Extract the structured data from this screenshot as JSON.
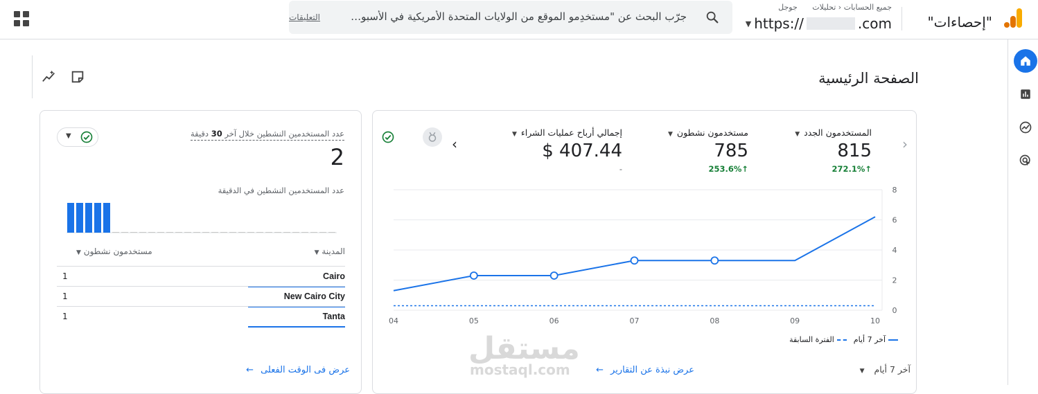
{
  "header": {
    "search_placeholder": "جرّب البحث عن \"مستخدِمو الموقع من الولايات المتحدة الأمريكية في الأسبوع الماضي\"",
    "feedback_link": "التعليقات",
    "brand_title": "\"إحصاءات\"",
    "breadcrumb_all_accounts": "جميع الحسابات",
    "breadcrumb_analytics": "تحليلات",
    "breadcrumb_google": "جوجل",
    "property_prefix": "https://",
    "property_suffix": ".com"
  },
  "page": {
    "title": "الصفحة الرئيسية"
  },
  "realtime": {
    "title_prefix": "عدد المستخدمين النشطين خلال آخر",
    "title_minutes": "30",
    "title_suffix": "دقيقة",
    "value": "2",
    "per_minute_label": "عدد المستخدمين النشطين في الدقيقة",
    "per_minute_values": [
      1,
      1,
      1,
      1,
      1,
      0,
      0,
      0,
      0,
      0,
      0,
      0,
      0,
      0,
      0,
      0,
      0,
      0,
      0,
      0,
      0,
      0,
      0,
      0,
      0,
      0,
      0,
      0,
      0,
      0
    ],
    "col_city": "المدينة",
    "col_users": "مستخدمون نشطون",
    "rows": [
      {
        "city": "Cairo",
        "users": "1"
      },
      {
        "city": "New Cairo City",
        "users": "1"
      },
      {
        "city": "Tanta",
        "users": "1"
      }
    ],
    "link": "عرض فى الوقت الفعلى"
  },
  "overview": {
    "metrics": [
      {
        "label": "المستخدمون الجدد",
        "value": "815",
        "change": "272.1%"
      },
      {
        "label": "مستخدمون نشطون",
        "value": "785",
        "change": "253.6%"
      },
      {
        "label": "إجمالي أرباح عمليات الشراء",
        "value": "$ 407.44",
        "change": "-"
      }
    ],
    "legend_current": "آخر 7 أيام",
    "legend_previous": "الفترة السابقة",
    "range": "آخر 7 أيام",
    "link": "عرض نبذة عن التقارير"
  },
  "chart_data": {
    "type": "line",
    "x": [
      "04",
      "05",
      "06",
      "07",
      "08",
      "09",
      "10"
    ],
    "series": [
      {
        "name": "آخر 7 أيام",
        "values": [
          1.3,
          2.3,
          2.3,
          3.3,
          3.3,
          3.3,
          6.2
        ]
      },
      {
        "name": "الفترة السابقة",
        "values": [
          0.3,
          0.3,
          0.3,
          0.3,
          0.3,
          0.3,
          0.3
        ]
      }
    ],
    "y_ticks": [
      "0",
      "2",
      "4",
      "6",
      "8"
    ],
    "ylim": [
      0,
      8
    ],
    "grid": true,
    "legend": "bottom-right",
    "colors": {
      "current": "#1a73e8",
      "previous": "#1a73e8"
    }
  },
  "watermark": {
    "text": "مستقل",
    "sub": "mostaql.com"
  }
}
